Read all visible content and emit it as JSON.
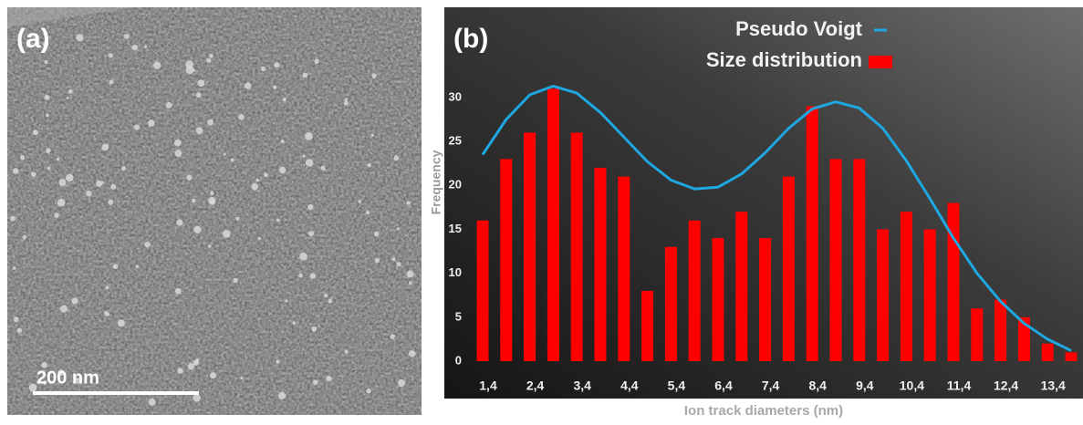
{
  "image_panel": {
    "label": "(a)",
    "scale_bar": "200 nm"
  },
  "chart_data": {
    "type": "bar",
    "panel_label": "(b)",
    "xlabel": "Ion track diameters (nm)",
    "ylabel": "Frequency",
    "categories": [
      "1,4",
      null,
      "2,4",
      null,
      "3,4",
      null,
      "4,4",
      null,
      "5,4",
      null,
      "6,4",
      null,
      "7,4",
      null,
      "8,4",
      null,
      "9,4",
      null,
      "10,4",
      null,
      "11,4",
      null,
      "12,4",
      null,
      "13,4",
      null
    ],
    "series": [
      {
        "name": "Pseudo Voigt",
        "type": "line",
        "color": "#1ea7e1",
        "values": [
          23.5,
          27.5,
          30.3,
          31.3,
          30.5,
          28.3,
          25.5,
          22.7,
          20.6,
          19.6,
          19.8,
          21.3,
          23.7,
          26.5,
          28.7,
          29.5,
          28.8,
          26.5,
          22.8,
          18.5,
          14,
          10,
          6.8,
          4.3,
          2.5,
          1.2
        ]
      },
      {
        "name": "Size distribution",
        "type": "bar",
        "color": "#ff0000",
        "values": [
          16,
          23,
          26,
          31,
          26,
          22,
          21,
          8,
          13,
          16,
          14,
          17,
          14,
          21,
          29,
          23,
          23,
          15,
          17,
          15,
          18,
          6,
          7,
          5,
          2,
          1
        ]
      }
    ],
    "ylim": [
      0,
      33
    ],
    "yticks": [
      0,
      5,
      10,
      15,
      20,
      25,
      30
    ]
  }
}
